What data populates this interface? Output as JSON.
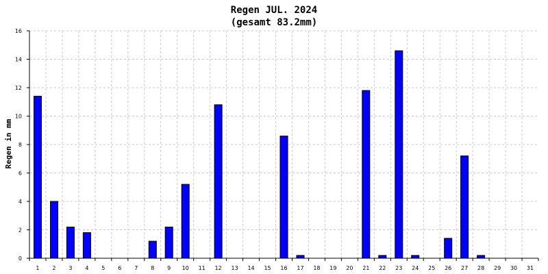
{
  "chart_data": {
    "type": "bar",
    "title": "Regen JUL. 2024",
    "subtitle": "(gesamt 83.2mm)",
    "xlabel": "",
    "ylabel": "Regen in mm",
    "ylim": [
      0,
      16
    ],
    "yticks": [
      "0",
      "2",
      "4",
      "6",
      "8",
      "10",
      "12",
      "14",
      "16"
    ],
    "grid": true,
    "categories": [
      "1",
      "2",
      "3",
      "4",
      "5",
      "6",
      "7",
      "8",
      "9",
      "10",
      "11",
      "12",
      "13",
      "14",
      "15",
      "16",
      "17",
      "18",
      "19",
      "20",
      "21",
      "22",
      "23",
      "24",
      "25",
      "26",
      "27",
      "28",
      "29",
      "30",
      "31"
    ],
    "values": [
      11.4,
      4.0,
      2.2,
      1.8,
      0,
      0,
      0,
      1.2,
      2.2,
      5.2,
      0,
      10.8,
      0,
      0,
      0,
      8.6,
      0.2,
      0,
      0,
      0,
      11.8,
      0.2,
      14.6,
      0.2,
      0,
      1.4,
      7.2,
      0.2,
      0,
      0,
      0
    ],
    "colors": {
      "bar": "#0000ff"
    }
  }
}
